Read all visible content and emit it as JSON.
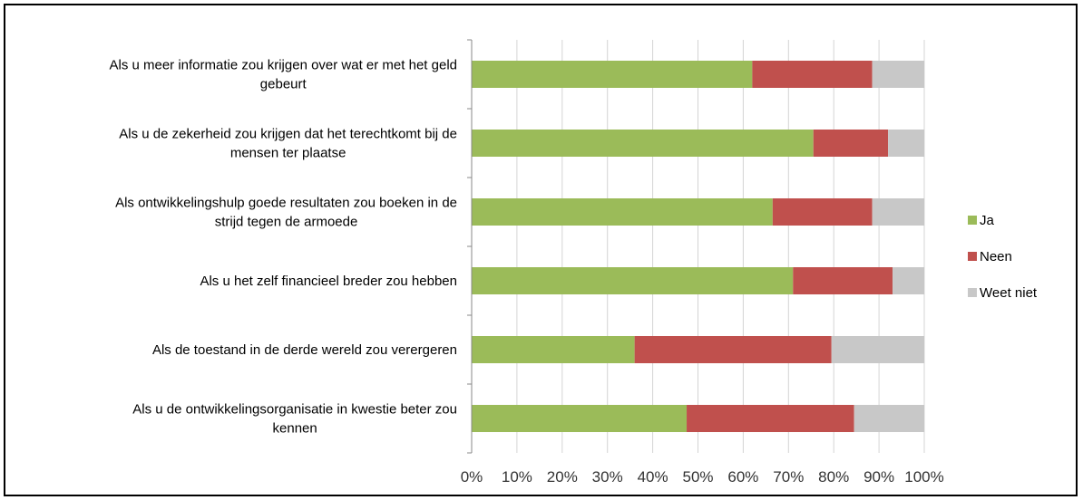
{
  "chart_data": {
    "type": "bar",
    "orientation": "horizontal",
    "stacked": true,
    "title": "",
    "xlabel": "",
    "ylabel": "",
    "xlim": [
      0,
      100
    ],
    "grid": true,
    "legend": "right",
    "xticks": [
      "0%",
      "10%",
      "20%",
      "30%",
      "40%",
      "50%",
      "60%",
      "70%",
      "80%",
      "90%",
      "100%"
    ],
    "categories": [
      [
        "Als u meer informatie zou krijgen over wat er met het geld",
        "gebeurt"
      ],
      [
        "Als u de zekerheid zou krijgen dat het terechtkomt bij de",
        "mensen ter plaatse"
      ],
      [
        "Als ontwikkelingshulp goede resultaten zou boeken in de",
        "strijd tegen de armoede"
      ],
      [
        "Als u het zelf financieel breder zou hebben"
      ],
      [
        "Als de toestand in de derde wereld zou verergeren"
      ],
      [
        "Als u de ontwikkelingsorganisatie in kwestie beter zou",
        "kennen"
      ]
    ],
    "series": [
      {
        "name": "Ja",
        "color": "#9BBB59",
        "values": [
          62,
          75.5,
          66.5,
          71,
          36,
          47.5
        ]
      },
      {
        "name": "Neen",
        "color": "#C0504D",
        "values": [
          26.5,
          16.5,
          22,
          22,
          43.5,
          37
        ]
      },
      {
        "name": "Weet niet",
        "color": "#C8C8C8",
        "values": [
          11.5,
          8,
          11.5,
          7,
          20.5,
          15.5
        ]
      }
    ]
  }
}
